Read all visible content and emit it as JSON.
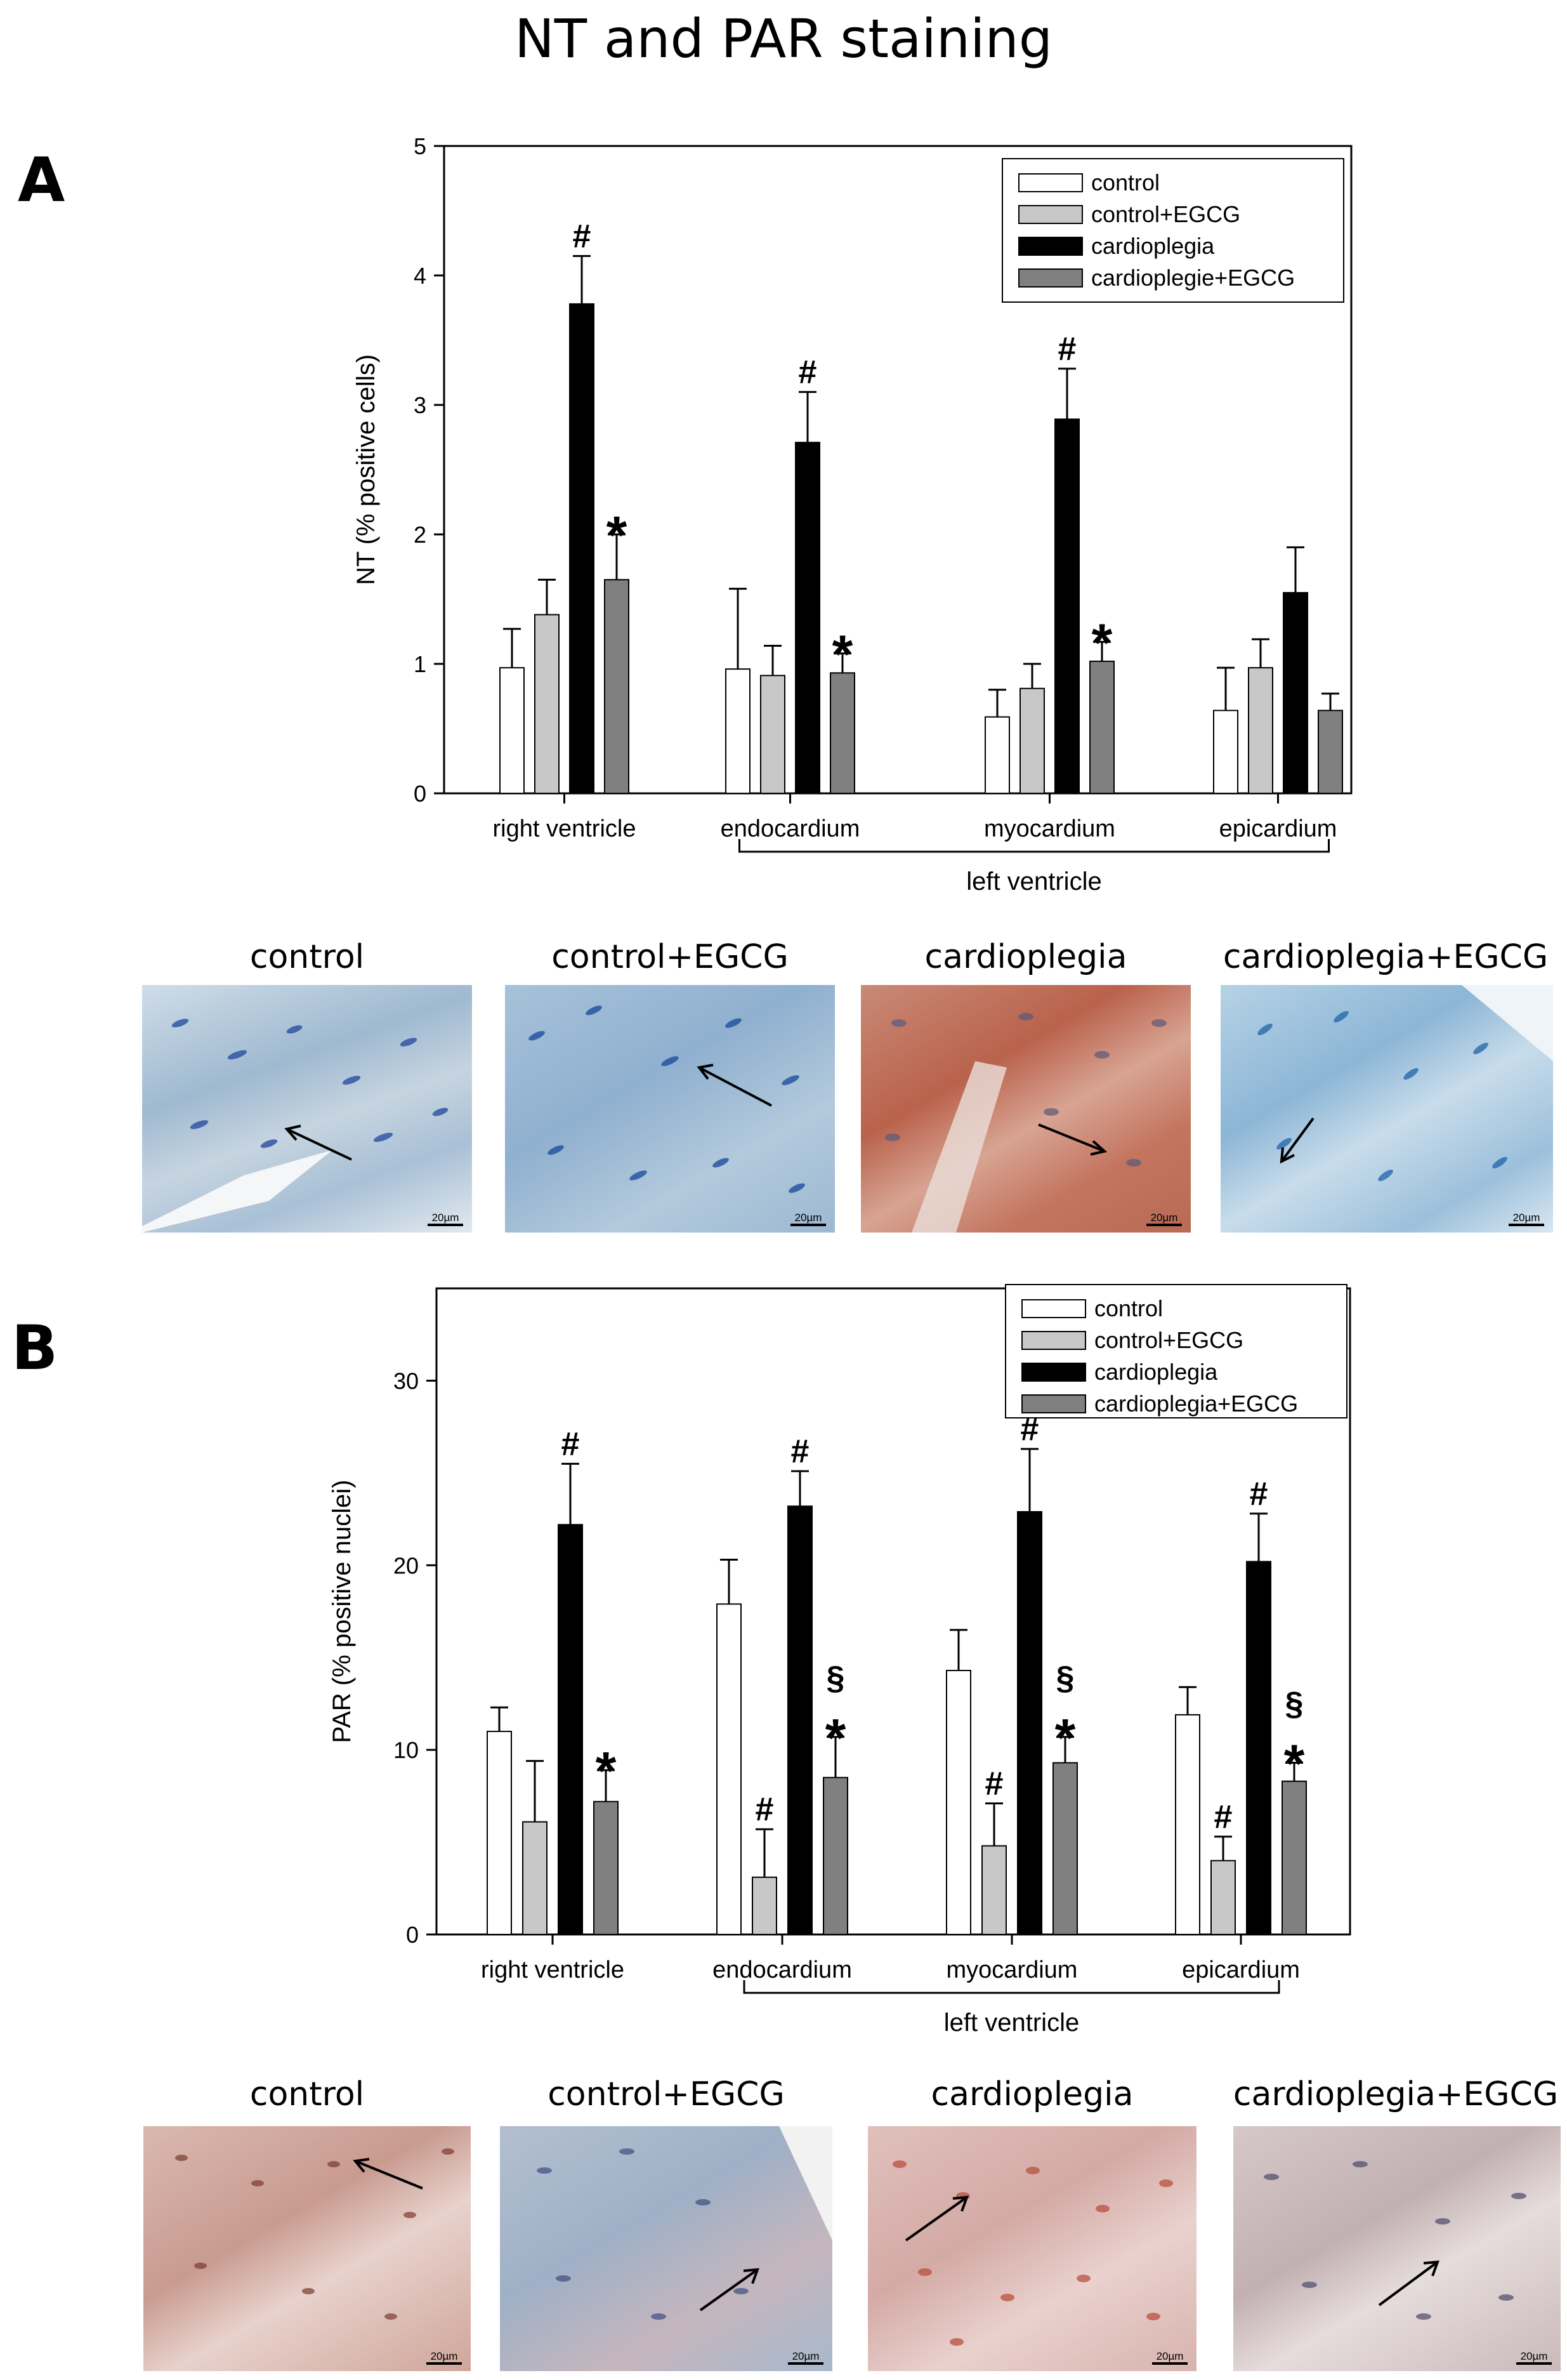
{
  "title": "NT and PAR staining",
  "panels": [
    {
      "letter": "A",
      "micrograph_labels": [
        "control",
        "control+EGCG",
        "cardioplegia",
        "cardioplegia+EGCG"
      ],
      "scale_label": "20µm"
    },
    {
      "letter": "B",
      "micrograph_labels": [
        "control",
        "control+EGCG",
        "cardioplegia",
        "cardioplegia+EGCG"
      ],
      "scale_label": "20µm"
    }
  ],
  "chart_data": [
    {
      "type": "bar",
      "ylabel": "NT (% positive cells)",
      "ylim": [
        0,
        5
      ],
      "yticks": [
        0,
        1,
        2,
        3,
        4,
        5
      ],
      "categories": [
        "right ventricle",
        "endocardium",
        "myocardium",
        "epicardium"
      ],
      "group_label": "left ventricle",
      "legend_position": "top-right",
      "series": [
        {
          "name": "control",
          "color": "#ffffff",
          "values": [
            0.97,
            0.96,
            0.59,
            0.64
          ],
          "errors": [
            0.3,
            0.62,
            0.21,
            0.33
          ]
        },
        {
          "name": "control+EGCG",
          "color": "#c8c8c8",
          "values": [
            1.38,
            0.91,
            0.81,
            0.97
          ],
          "errors": [
            0.27,
            0.23,
            0.19,
            0.22
          ]
        },
        {
          "name": "cardioplegia",
          "color": "#000000",
          "values": [
            3.78,
            2.71,
            2.89,
            1.55
          ],
          "errors": [
            0.37,
            0.39,
            0.39,
            0.35
          ]
        },
        {
          "name": "cardioplegie+EGCG",
          "color": "#808080",
          "values": [
            1.65,
            0.93,
            1.02,
            0.64
          ],
          "errors": [
            0.35,
            0.15,
            0.15,
            0.13
          ]
        }
      ],
      "annotations": [
        {
          "series": 2,
          "category": 0,
          "text": "#"
        },
        {
          "series": 3,
          "category": 0,
          "text": "*"
        },
        {
          "series": 2,
          "category": 1,
          "text": "#"
        },
        {
          "series": 3,
          "category": 1,
          "text": "*"
        },
        {
          "series": 2,
          "category": 2,
          "text": "#"
        },
        {
          "series": 3,
          "category": 2,
          "text": "*"
        }
      ]
    },
    {
      "type": "bar",
      "ylabel": "PAR (% positive nuclei)",
      "ylim": [
        0,
        35
      ],
      "yticks": [
        0,
        10,
        20,
        30
      ],
      "categories": [
        "right ventricle",
        "endocardium",
        "myocardium",
        "epicardium"
      ],
      "group_label": "left ventricle",
      "legend_position": "top-right",
      "series": [
        {
          "name": "control",
          "color": "#ffffff",
          "values": [
            11.0,
            17.9,
            14.3,
            11.9
          ],
          "errors": [
            1.3,
            2.4,
            2.2,
            1.5
          ]
        },
        {
          "name": "control+EGCG",
          "color": "#c8c8c8",
          "values": [
            6.1,
            3.1,
            4.8,
            4.0
          ],
          "errors": [
            3.3,
            2.6,
            2.3,
            1.3
          ]
        },
        {
          "name": "cardioplegia",
          "color": "#000000",
          "values": [
            22.2,
            23.2,
            22.9,
            20.2
          ],
          "errors": [
            3.3,
            1.9,
            3.4,
            2.6
          ]
        },
        {
          "name": "cardioplegia+EGCG",
          "color": "#808080",
          "values": [
            7.2,
            8.5,
            9.3,
            8.3
          ],
          "errors": [
            1.7,
            2.2,
            1.4,
            1.0
          ]
        }
      ],
      "annotations": [
        {
          "series": 2,
          "category": 0,
          "text": "#"
        },
        {
          "series": 3,
          "category": 0,
          "text": "*"
        },
        {
          "series": 1,
          "category": 1,
          "text": "#"
        },
        {
          "series": 2,
          "category": 1,
          "text": "#"
        },
        {
          "series": 3,
          "category": 1,
          "text": "*"
        },
        {
          "series": 3,
          "category": 1,
          "text": "§"
        },
        {
          "series": 1,
          "category": 2,
          "text": "#"
        },
        {
          "series": 2,
          "category": 2,
          "text": "#"
        },
        {
          "series": 3,
          "category": 2,
          "text": "*"
        },
        {
          "series": 3,
          "category": 2,
          "text": "§"
        },
        {
          "series": 1,
          "category": 3,
          "text": "#"
        },
        {
          "series": 2,
          "category": 3,
          "text": "#"
        },
        {
          "series": 3,
          "category": 3,
          "text": "*"
        },
        {
          "series": 3,
          "category": 3,
          "text": "§"
        }
      ]
    }
  ]
}
